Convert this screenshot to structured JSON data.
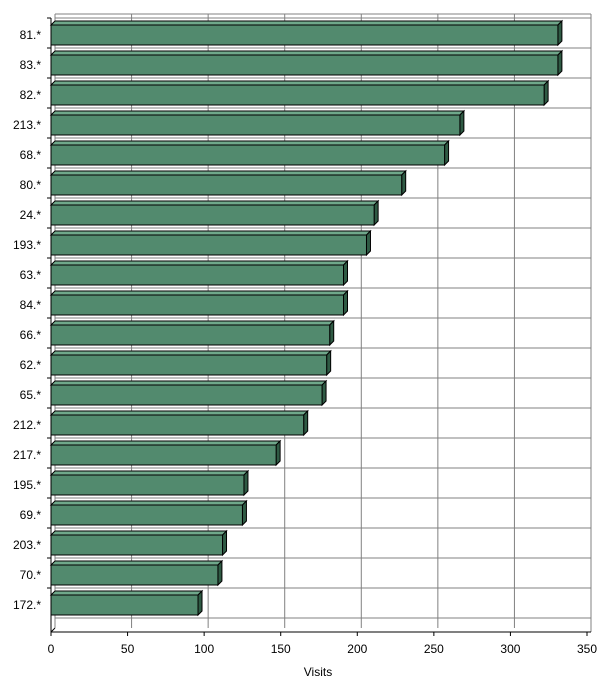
{
  "chart_data": {
    "type": "bar",
    "orientation": "horizontal",
    "categories": [
      "81.*",
      "83.*",
      "82.*",
      "213.*",
      "68.*",
      "80.*",
      "24.*",
      "193.*",
      "63.*",
      "84.*",
      "66.*",
      "62.*",
      "65.*",
      "212.*",
      "217.*",
      "195.*",
      "69.*",
      "203.*",
      "70.*",
      "172.*"
    ],
    "values": [
      331,
      331,
      322,
      267,
      257,
      229,
      211,
      206,
      191,
      191,
      182,
      180,
      177,
      165,
      147,
      126,
      125,
      112,
      109,
      96
    ],
    "xlabel": "Visits",
    "ylabel": "",
    "xlim": [
      0,
      350
    ],
    "xticks": [
      "0",
      "50",
      "100",
      "150",
      "200",
      "250",
      "300",
      "350"
    ],
    "grid": true,
    "colors": {
      "bar_front": "#528A6E",
      "bar_top": "#6FA88B",
      "bar_side": "#2F5A44",
      "bar_outline": "#000000",
      "grid": "#808080",
      "background": "#FFFFFF"
    }
  }
}
